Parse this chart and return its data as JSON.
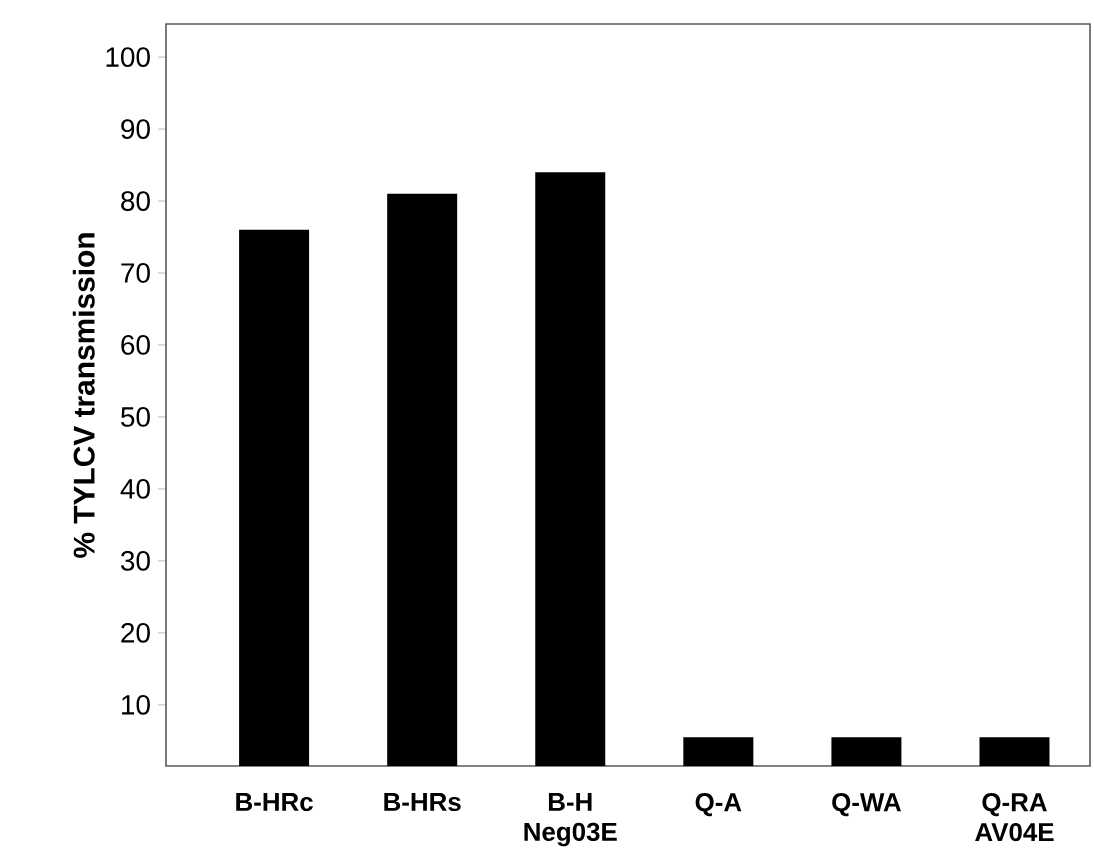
{
  "chart_data": {
    "type": "bar",
    "ylabel": "% TYLCV transmission",
    "categories": [
      "B-HRc",
      "B-HRs",
      "B-H Neg03E",
      "Q-A",
      "Q-WA",
      "Q-RA AV04E"
    ],
    "values": [
      76,
      81,
      84,
      5.5,
      5.5,
      5.5
    ],
    "color": "#000000",
    "ylim": [
      1.5,
      104.6
    ],
    "yticks": [
      10,
      20,
      30,
      40,
      50,
      60,
      70,
      80,
      90,
      100
    ],
    "grid": false
  }
}
